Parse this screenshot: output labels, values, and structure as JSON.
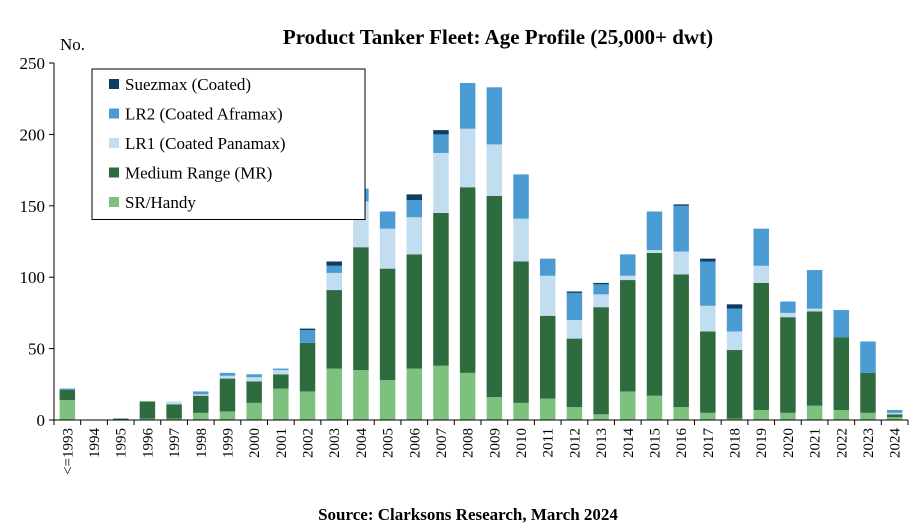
{
  "chart_data": {
    "type": "bar",
    "stacked": true,
    "title": "Product Tanker  Fleet: Age Profile (25,000+ dwt)",
    "ylabel": "No.",
    "xlabel": "",
    "source": "Source: Clarksons Research, March 2024",
    "ylim": [
      0,
      250
    ],
    "yticks": [
      0,
      50,
      100,
      150,
      200,
      250
    ],
    "grid": false,
    "legend_position": "top-left",
    "categories": [
      "<=1993",
      "1994",
      "1995",
      "1996",
      "1997",
      "1998",
      "1999",
      "2000",
      "2001",
      "2002",
      "2003",
      "2004",
      "2005",
      "2006",
      "2007",
      "2008",
      "2009",
      "2010",
      "2011",
      "2012",
      "2013",
      "2014",
      "2015",
      "2016",
      "2017",
      "2018",
      "2019",
      "2020",
      "2021",
      "2022",
      "2023",
      "2024"
    ],
    "series": [
      {
        "name": "SR/Handy",
        "color": "#7dc17f",
        "values": [
          14,
          0,
          0,
          1,
          1,
          5,
          6,
          12,
          22,
          20,
          36,
          35,
          28,
          36,
          38,
          33,
          16,
          12,
          15,
          9,
          4,
          20,
          17,
          9,
          5,
          1,
          7,
          5,
          10,
          7,
          5,
          2
        ]
      },
      {
        "name": "Medium Range (MR)",
        "color": "#2e6b3f",
        "values": [
          7,
          0,
          1,
          12,
          10,
          12,
          23,
          15,
          10,
          34,
          55,
          86,
          78,
          80,
          107,
          130,
          141,
          99,
          58,
          48,
          75,
          78,
          100,
          93,
          57,
          48,
          89,
          67,
          66,
          51,
          28,
          2
        ]
      },
      {
        "name": "LR1 (Coated Panamax)",
        "color": "#c2dcf0",
        "values": [
          0,
          0,
          0,
          0,
          2,
          1,
          2,
          3,
          3,
          0,
          12,
          32,
          28,
          26,
          42,
          41,
          36,
          30,
          28,
          13,
          9,
          3,
          2,
          16,
          18,
          13,
          12,
          3,
          2,
          0,
          0,
          1
        ]
      },
      {
        "name": "LR2 (Coated Aframax)",
        "color": "#4a9bd1",
        "values": [
          1,
          0,
          0,
          0,
          0,
          2,
          2,
          2,
          1,
          9,
          5,
          9,
          12,
          12,
          13,
          32,
          40,
          31,
          12,
          19,
          7,
          15,
          27,
          32,
          31,
          16,
          26,
          8,
          27,
          19,
          22,
          2
        ]
      },
      {
        "name": "Suezmax (Coated)",
        "color": "#0e3d63",
        "values": [
          0,
          0,
          0,
          0,
          0,
          0,
          0,
          0,
          0,
          1,
          3,
          0,
          0,
          4,
          3,
          0,
          0,
          0,
          0,
          1,
          1,
          0,
          0,
          1,
          2,
          3,
          0,
          0,
          0,
          0,
          0,
          0
        ]
      }
    ]
  }
}
